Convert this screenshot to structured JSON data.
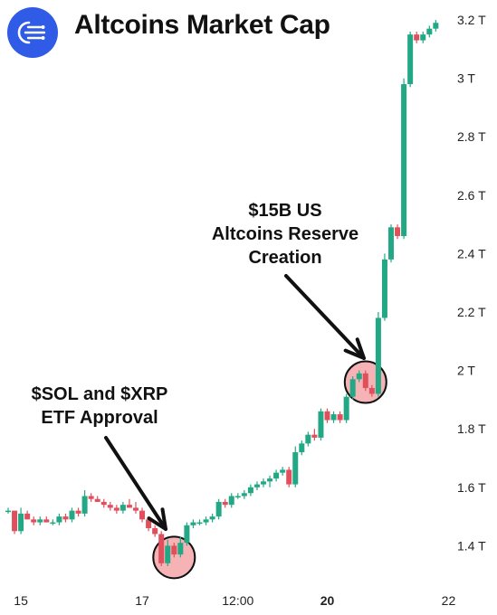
{
  "header": {
    "title": "Altcoins Market Cap",
    "logo_icon": "circuit-lines-icon",
    "logo_color": "#2f5be7"
  },
  "annotations": [
    {
      "lines": [
        "$15B US",
        "Altcoins Reserve",
        "Creation"
      ]
    },
    {
      "lines": [
        "$SOL and $XRP",
        "ETF Approval"
      ]
    }
  ],
  "chart_data": {
    "type": "candlestick",
    "title": "Altcoins Market Cap",
    "up_color": "#22a884",
    "down_color": "#e0505c",
    "highlight_color": "#f3a6a8",
    "grid": false,
    "yaxis_position": "right",
    "ylim": [
      1.3,
      3.22
    ],
    "y_ticks": [
      {
        "value": 3.2,
        "label": "3.2 T"
      },
      {
        "value": 3.0,
        "label": "3 T"
      },
      {
        "value": 2.8,
        "label": "2.8 T"
      },
      {
        "value": 2.6,
        "label": "2.6 T"
      },
      {
        "value": 2.4,
        "label": "2.4 T"
      },
      {
        "value": 2.2,
        "label": "2.2 T"
      },
      {
        "value": 2.0,
        "label": "2 T"
      },
      {
        "value": 1.8,
        "label": "1.8 T"
      },
      {
        "value": 1.6,
        "label": "1.6 T"
      },
      {
        "value": 1.4,
        "label": "1.4 T"
      }
    ],
    "x_ticks": [
      {
        "index": 2,
        "label": "15",
        "bold": false
      },
      {
        "index": 21,
        "label": "17",
        "bold": false
      },
      {
        "index": 36,
        "label": "12:00",
        "bold": false
      },
      {
        "index": 50,
        "label": "20",
        "bold": true
      },
      {
        "index": 69,
        "label": "22",
        "bold": false
      }
    ],
    "candles": [
      [
        1.52,
        1.53,
        1.51,
        1.52
      ],
      [
        1.52,
        1.52,
        1.44,
        1.45
      ],
      [
        1.45,
        1.53,
        1.44,
        1.51
      ],
      [
        1.51,
        1.52,
        1.49,
        1.49
      ],
      [
        1.49,
        1.5,
        1.47,
        1.48
      ],
      [
        1.48,
        1.5,
        1.47,
        1.49
      ],
      [
        1.49,
        1.5,
        1.48,
        1.48
      ],
      [
        1.48,
        1.49,
        1.47,
        1.48
      ],
      [
        1.48,
        1.51,
        1.47,
        1.5
      ],
      [
        1.5,
        1.51,
        1.48,
        1.49
      ],
      [
        1.49,
        1.53,
        1.48,
        1.52
      ],
      [
        1.52,
        1.53,
        1.5,
        1.51
      ],
      [
        1.51,
        1.59,
        1.5,
        1.57
      ],
      [
        1.57,
        1.58,
        1.55,
        1.56
      ],
      [
        1.56,
        1.57,
        1.55,
        1.55
      ],
      [
        1.55,
        1.56,
        1.53,
        1.54
      ],
      [
        1.54,
        1.55,
        1.52,
        1.53
      ],
      [
        1.53,
        1.54,
        1.51,
        1.52
      ],
      [
        1.52,
        1.55,
        1.51,
        1.54
      ],
      [
        1.54,
        1.56,
        1.53,
        1.53
      ],
      [
        1.53,
        1.55,
        1.51,
        1.52
      ],
      [
        1.52,
        1.53,
        1.48,
        1.49
      ],
      [
        1.49,
        1.5,
        1.45,
        1.46
      ],
      [
        1.46,
        1.47,
        1.43,
        1.44
      ],
      [
        1.44,
        1.45,
        1.33,
        1.34
      ],
      [
        1.34,
        1.42,
        1.33,
        1.4
      ],
      [
        1.4,
        1.41,
        1.36,
        1.37
      ],
      [
        1.37,
        1.43,
        1.36,
        1.41
      ],
      [
        1.41,
        1.48,
        1.4,
        1.47
      ],
      [
        1.47,
        1.49,
        1.46,
        1.48
      ],
      [
        1.48,
        1.49,
        1.47,
        1.48
      ],
      [
        1.48,
        1.5,
        1.47,
        1.49
      ],
      [
        1.49,
        1.51,
        1.48,
        1.5
      ],
      [
        1.5,
        1.56,
        1.49,
        1.55
      ],
      [
        1.55,
        1.56,
        1.53,
        1.54
      ],
      [
        1.54,
        1.58,
        1.53,
        1.57
      ],
      [
        1.57,
        1.58,
        1.56,
        1.57
      ],
      [
        1.57,
        1.59,
        1.56,
        1.58
      ],
      [
        1.58,
        1.61,
        1.57,
        1.6
      ],
      [
        1.6,
        1.62,
        1.59,
        1.61
      ],
      [
        1.61,
        1.63,
        1.6,
        1.62
      ],
      [
        1.62,
        1.64,
        1.6,
        1.63
      ],
      [
        1.63,
        1.66,
        1.62,
        1.65
      ],
      [
        1.65,
        1.67,
        1.64,
        1.66
      ],
      [
        1.66,
        1.67,
        1.6,
        1.61
      ],
      [
        1.61,
        1.74,
        1.6,
        1.72
      ],
      [
        1.72,
        1.76,
        1.71,
        1.75
      ],
      [
        1.75,
        1.79,
        1.74,
        1.78
      ],
      [
        1.78,
        1.8,
        1.76,
        1.77
      ],
      [
        1.77,
        1.87,
        1.76,
        1.86
      ],
      [
        1.86,
        1.87,
        1.82,
        1.83
      ],
      [
        1.83,
        1.86,
        1.82,
        1.85
      ],
      [
        1.85,
        1.86,
        1.82,
        1.83
      ],
      [
        1.83,
        1.92,
        1.82,
        1.91
      ],
      [
        1.91,
        1.98,
        1.9,
        1.97
      ],
      [
        1.97,
        2.0,
        1.96,
        1.99
      ],
      [
        1.99,
        2.0,
        1.93,
        1.94
      ],
      [
        1.94,
        1.95,
        1.91,
        1.92
      ],
      [
        1.92,
        2.2,
        1.91,
        2.18
      ],
      [
        2.18,
        2.4,
        2.17,
        2.38
      ],
      [
        2.38,
        2.5,
        2.37,
        2.49
      ],
      [
        2.49,
        2.5,
        2.45,
        2.46
      ],
      [
        2.46,
        3.0,
        2.45,
        2.98
      ],
      [
        2.98,
        3.16,
        2.97,
        3.15
      ],
      [
        3.15,
        3.16,
        3.12,
        3.13
      ],
      [
        3.13,
        3.16,
        3.12,
        3.15
      ],
      [
        3.15,
        3.18,
        3.14,
        3.17
      ],
      [
        3.17,
        3.2,
        3.16,
        3.19
      ]
    ],
    "highlights": [
      {
        "center_index": 26,
        "center_value": 1.36
      },
      {
        "center_index": 56,
        "center_value": 1.96
      }
    ]
  }
}
